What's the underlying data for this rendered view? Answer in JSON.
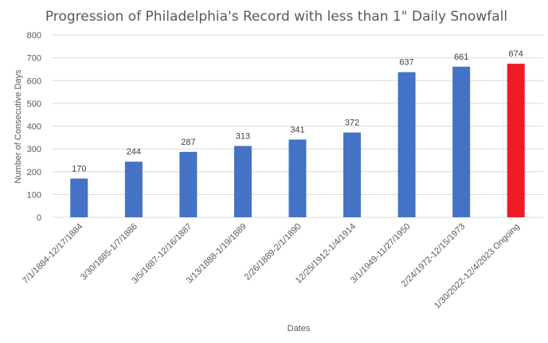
{
  "chart_data": {
    "type": "bar",
    "title": "Progression of Philadelphia's Record with less than 1\" Daily Snowfall",
    "xlabel": "Dates",
    "ylabel": "Number of Consecutive Days",
    "ylim": [
      0,
      800
    ],
    "yticks": [
      0,
      100,
      200,
      300,
      400,
      500,
      600,
      700,
      800
    ],
    "grid": true,
    "legend": "none",
    "categories": [
      "7/1/1884-12/17/1884",
      "3/30/1885-1/7/1886",
      "3/5/1887-12/16/1887",
      "3/13/1888-1/19/1889",
      "2/26/1889-2/1/1890",
      "12/25/1912-1/4/1914",
      "3/1/1949-11/27/1950",
      "2/24/1972-12/15/1973",
      "1/30/2022-12/4/2023 Ongoing"
    ],
    "values": [
      170,
      244,
      287,
      313,
      341,
      372,
      637,
      661,
      674
    ],
    "colors": {
      "default_bar": "#4472c4",
      "highlight_bar": "#ee1c25",
      "highlight_index": 8
    }
  }
}
